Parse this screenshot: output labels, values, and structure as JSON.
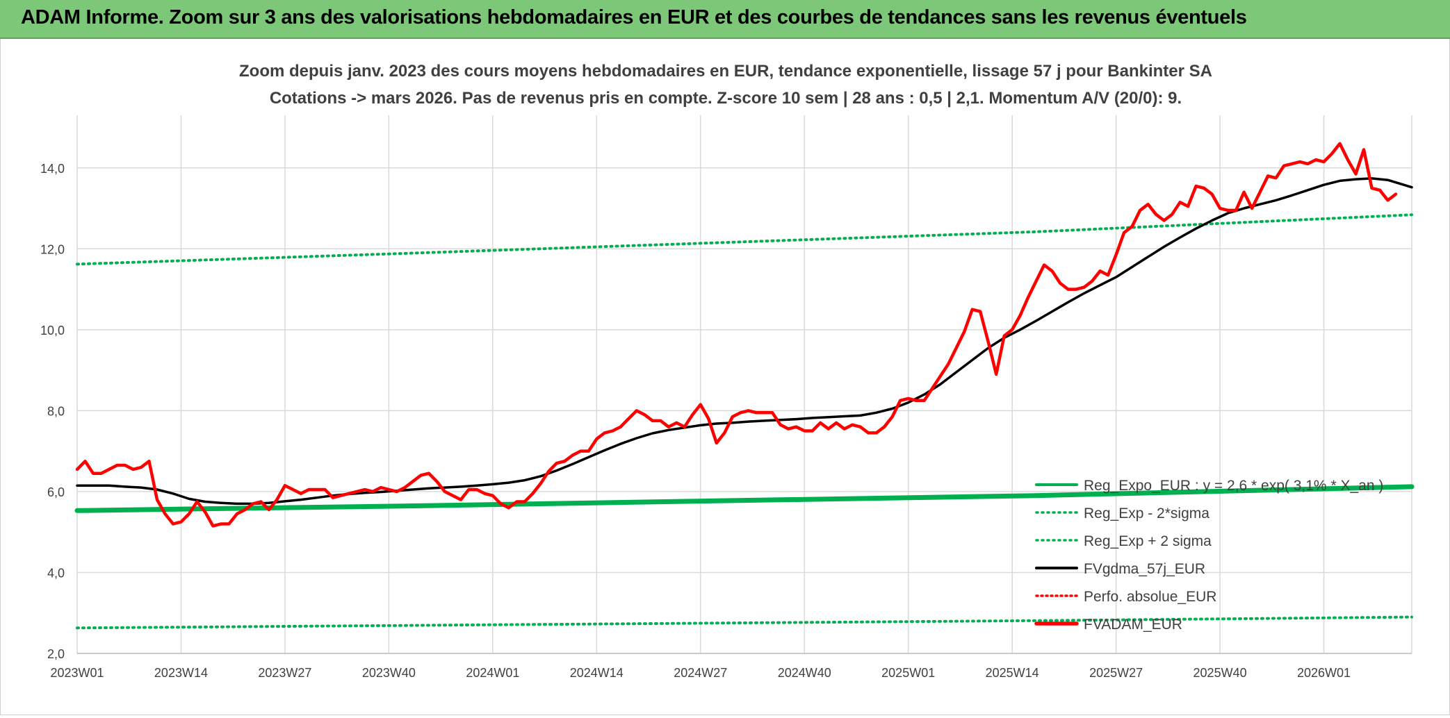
{
  "header": {
    "title": "ADAM Informe. Zoom sur 3 ans des valorisations hebdomadaires en EUR et des courbes de tendances sans les revenus éventuels"
  },
  "chart_data": {
    "type": "line",
    "title": "Zoom depuis janv. 2023 des cours moyens hebdomadaires en EUR, tendance exponentielle, lissage 57 j pour Bankinter SA",
    "subtitle": "Cotations -> mars 2026. Pas de revenus pris en compte. Z-score 10 sem | 28 ans : 0,5 | 2,1. Momentum A/V (20/0): 9.",
    "xlabel": "",
    "ylabel": "",
    "ylim": [
      2.0,
      15.3
    ],
    "yticks": [
      "2,0",
      "4,0",
      "6,0",
      "8,0",
      "10,0",
      "12,0",
      "14,0"
    ],
    "x_start": "2023W01",
    "x_end": "2026W12",
    "xticks": [
      "2023W01",
      "2023W14",
      "2023W27",
      "2023W40",
      "2024W01",
      "2024W14",
      "2024W27",
      "2024W40",
      "2025W01",
      "2025W14",
      "2025W27",
      "2025W40",
      "2026W01"
    ],
    "grid": true,
    "legend_position": "bottom-right",
    "colors": {
      "reg_expo": "#00b050",
      "fv_adam": "#ff0000",
      "fv_gdma": "#000000",
      "perfo": "#ff0000",
      "grid": "#d9d9d9",
      "axis_text": "#404040",
      "title_text": "#404040"
    },
    "series": [
      {
        "name": "Reg_Expo_EUR : y = 2,6 * exp( 3,1% * X_an )",
        "style": "solid-thick",
        "points": [
          [
            0,
            5.53
          ],
          [
            40,
            5.64
          ],
          [
            80,
            5.77
          ],
          [
            120,
            5.9
          ],
          [
            167,
            6.12
          ]
        ]
      },
      {
        "name": "Reg_Exp - 2*sigma",
        "style": "dotted",
        "points": [
          [
            0,
            2.63
          ],
          [
            40,
            2.69
          ],
          [
            80,
            2.75
          ],
          [
            120,
            2.81
          ],
          [
            167,
            2.9
          ]
        ]
      },
      {
        "name": "Reg_Exp + 2 sigma",
        "style": "dotted",
        "points": [
          [
            0,
            11.62
          ],
          [
            40,
            11.88
          ],
          [
            80,
            12.15
          ],
          [
            120,
            12.42
          ],
          [
            167,
            12.84
          ]
        ]
      },
      {
        "name": "FVgdma_57j_EUR",
        "style": "solid",
        "points": [
          [
            0,
            6.15
          ],
          [
            2,
            6.15
          ],
          [
            4,
            6.15
          ],
          [
            6,
            6.12
          ],
          [
            8,
            6.1
          ],
          [
            10,
            6.05
          ],
          [
            12,
            5.95
          ],
          [
            14,
            5.82
          ],
          [
            16,
            5.75
          ],
          [
            18,
            5.72
          ],
          [
            20,
            5.7
          ],
          [
            22,
            5.7
          ],
          [
            24,
            5.72
          ],
          [
            26,
            5.76
          ],
          [
            28,
            5.8
          ],
          [
            30,
            5.85
          ],
          [
            32,
            5.9
          ],
          [
            34,
            5.94
          ],
          [
            36,
            5.97
          ],
          [
            38,
            5.99
          ],
          [
            40,
            6.02
          ],
          [
            42,
            6.05
          ],
          [
            44,
            6.08
          ],
          [
            46,
            6.1
          ],
          [
            48,
            6.12
          ],
          [
            50,
            6.15
          ],
          [
            52,
            6.18
          ],
          [
            54,
            6.22
          ],
          [
            56,
            6.28
          ],
          [
            58,
            6.38
          ],
          [
            60,
            6.52
          ],
          [
            62,
            6.68
          ],
          [
            64,
            6.85
          ],
          [
            66,
            7.02
          ],
          [
            68,
            7.18
          ],
          [
            70,
            7.32
          ],
          [
            72,
            7.44
          ],
          [
            74,
            7.52
          ],
          [
            76,
            7.58
          ],
          [
            78,
            7.64
          ],
          [
            80,
            7.68
          ],
          [
            82,
            7.7
          ],
          [
            84,
            7.73
          ],
          [
            86,
            7.75
          ],
          [
            88,
            7.77
          ],
          [
            90,
            7.79
          ],
          [
            92,
            7.82
          ],
          [
            94,
            7.84
          ],
          [
            96,
            7.86
          ],
          [
            98,
            7.88
          ],
          [
            100,
            7.95
          ],
          [
            102,
            8.05
          ],
          [
            104,
            8.2
          ],
          [
            106,
            8.4
          ],
          [
            108,
            8.65
          ],
          [
            110,
            8.95
          ],
          [
            112,
            9.25
          ],
          [
            114,
            9.55
          ],
          [
            116,
            9.8
          ],
          [
            118,
            10.0
          ],
          [
            120,
            10.22
          ],
          [
            122,
            10.45
          ],
          [
            124,
            10.68
          ],
          [
            126,
            10.9
          ],
          [
            128,
            11.1
          ],
          [
            130,
            11.3
          ],
          [
            132,
            11.55
          ],
          [
            134,
            11.8
          ],
          [
            136,
            12.05
          ],
          [
            138,
            12.28
          ],
          [
            140,
            12.5
          ],
          [
            142,
            12.7
          ],
          [
            144,
            12.88
          ],
          [
            146,
            13.0
          ],
          [
            148,
            13.1
          ],
          [
            150,
            13.2
          ],
          [
            152,
            13.32
          ],
          [
            154,
            13.45
          ],
          [
            156,
            13.58
          ],
          [
            158,
            13.68
          ],
          [
            160,
            13.72
          ],
          [
            162,
            13.74
          ],
          [
            164,
            13.7
          ],
          [
            166,
            13.58
          ],
          [
            167,
            13.52
          ]
        ]
      },
      {
        "name": "Perfo. absolue_EUR",
        "style": "dotted",
        "points": []
      },
      {
        "name": "FVADAM_EUR",
        "style": "solid-thick",
        "points": [
          [
            0,
            6.55
          ],
          [
            1,
            6.75
          ],
          [
            2,
            6.45
          ],
          [
            3,
            6.45
          ],
          [
            4,
            6.55
          ],
          [
            5,
            6.65
          ],
          [
            6,
            6.65
          ],
          [
            7,
            6.55
          ],
          [
            8,
            6.6
          ],
          [
            9,
            6.75
          ],
          [
            10,
            5.8
          ],
          [
            11,
            5.45
          ],
          [
            12,
            5.2
          ],
          [
            13,
            5.25
          ],
          [
            14,
            5.45
          ],
          [
            15,
            5.75
          ],
          [
            16,
            5.5
          ],
          [
            17,
            5.15
          ],
          [
            18,
            5.2
          ],
          [
            19,
            5.2
          ],
          [
            20,
            5.45
          ],
          [
            21,
            5.55
          ],
          [
            22,
            5.7
          ],
          [
            23,
            5.75
          ],
          [
            24,
            5.55
          ],
          [
            25,
            5.8
          ],
          [
            26,
            6.15
          ],
          [
            27,
            6.05
          ],
          [
            28,
            5.95
          ],
          [
            29,
            6.05
          ],
          [
            30,
            6.05
          ],
          [
            31,
            6.05
          ],
          [
            32,
            5.85
          ],
          [
            33,
            5.9
          ],
          [
            34,
            5.95
          ],
          [
            35,
            6.0
          ],
          [
            36,
            6.05
          ],
          [
            37,
            6.0
          ],
          [
            38,
            6.1
          ],
          [
            39,
            6.05
          ],
          [
            40,
            6.0
          ],
          [
            41,
            6.1
          ],
          [
            42,
            6.25
          ],
          [
            43,
            6.4
          ],
          [
            44,
            6.45
          ],
          [
            45,
            6.25
          ],
          [
            46,
            6.0
          ],
          [
            47,
            5.9
          ],
          [
            48,
            5.8
          ],
          [
            49,
            6.05
          ],
          [
            50,
            6.05
          ],
          [
            51,
            5.95
          ],
          [
            52,
            5.9
          ],
          [
            53,
            5.7
          ],
          [
            54,
            5.6
          ],
          [
            55,
            5.75
          ],
          [
            56,
            5.75
          ],
          [
            57,
            5.95
          ],
          [
            58,
            6.2
          ],
          [
            59,
            6.5
          ],
          [
            60,
            6.7
          ],
          [
            61,
            6.75
          ],
          [
            62,
            6.9
          ],
          [
            63,
            7.0
          ],
          [
            64,
            7.0
          ],
          [
            65,
            7.3
          ],
          [
            66,
            7.45
          ],
          [
            67,
            7.5
          ],
          [
            68,
            7.6
          ],
          [
            69,
            7.8
          ],
          [
            70,
            8.0
          ],
          [
            71,
            7.9
          ],
          [
            72,
            7.75
          ],
          [
            73,
            7.75
          ],
          [
            74,
            7.6
          ],
          [
            75,
            7.7
          ],
          [
            76,
            7.6
          ],
          [
            77,
            7.9
          ],
          [
            78,
            8.15
          ],
          [
            79,
            7.8
          ],
          [
            80,
            7.2
          ],
          [
            81,
            7.45
          ],
          [
            82,
            7.85
          ],
          [
            83,
            7.95
          ],
          [
            84,
            8.0
          ],
          [
            85,
            7.95
          ],
          [
            86,
            7.95
          ],
          [
            87,
            7.95
          ],
          [
            88,
            7.65
          ],
          [
            89,
            7.55
          ],
          [
            90,
            7.6
          ],
          [
            91,
            7.5
          ],
          [
            92,
            7.5
          ],
          [
            93,
            7.7
          ],
          [
            94,
            7.55
          ],
          [
            95,
            7.7
          ],
          [
            96,
            7.55
          ],
          [
            97,
            7.65
          ],
          [
            98,
            7.6
          ],
          [
            99,
            7.45
          ],
          [
            100,
            7.45
          ],
          [
            101,
            7.6
          ],
          [
            102,
            7.85
          ],
          [
            103,
            8.25
          ],
          [
            104,
            8.3
          ],
          [
            105,
            8.25
          ],
          [
            106,
            8.25
          ],
          [
            107,
            8.55
          ],
          [
            108,
            8.85
          ],
          [
            109,
            9.15
          ],
          [
            110,
            9.55
          ],
          [
            111,
            9.95
          ],
          [
            112,
            10.5
          ],
          [
            113,
            10.45
          ],
          [
            114,
            9.7
          ],
          [
            115,
            8.9
          ],
          [
            116,
            9.85
          ],
          [
            117,
            10.0
          ],
          [
            118,
            10.35
          ],
          [
            119,
            10.8
          ],
          [
            120,
            11.2
          ],
          [
            121,
            11.6
          ],
          [
            122,
            11.45
          ],
          [
            123,
            11.15
          ],
          [
            124,
            11.0
          ],
          [
            125,
            11.0
          ],
          [
            126,
            11.05
          ],
          [
            127,
            11.2
          ],
          [
            128,
            11.45
          ],
          [
            129,
            11.35
          ],
          [
            130,
            11.85
          ],
          [
            131,
            12.4
          ],
          [
            132,
            12.55
          ],
          [
            133,
            12.95
          ],
          [
            134,
            13.1
          ],
          [
            135,
            12.85
          ],
          [
            136,
            12.7
          ],
          [
            137,
            12.85
          ],
          [
            138,
            13.15
          ],
          [
            139,
            13.05
          ],
          [
            140,
            13.55
          ],
          [
            141,
            13.5
          ],
          [
            142,
            13.35
          ],
          [
            143,
            13.0
          ],
          [
            144,
            12.95
          ],
          [
            145,
            12.95
          ],
          [
            146,
            13.4
          ],
          [
            147,
            13.0
          ],
          [
            148,
            13.4
          ],
          [
            149,
            13.8
          ],
          [
            150,
            13.75
          ],
          [
            151,
            14.05
          ],
          [
            152,
            14.1
          ],
          [
            153,
            14.15
          ],
          [
            154,
            14.1
          ],
          [
            155,
            14.2
          ],
          [
            156,
            14.15
          ],
          [
            157,
            14.35
          ],
          [
            158,
            14.6
          ],
          [
            159,
            14.2
          ],
          [
            160,
            13.85
          ],
          [
            161,
            14.45
          ],
          [
            162,
            13.5
          ],
          [
            163,
            13.45
          ],
          [
            164,
            13.2
          ],
          [
            165,
            13.35
          ]
        ]
      }
    ]
  }
}
